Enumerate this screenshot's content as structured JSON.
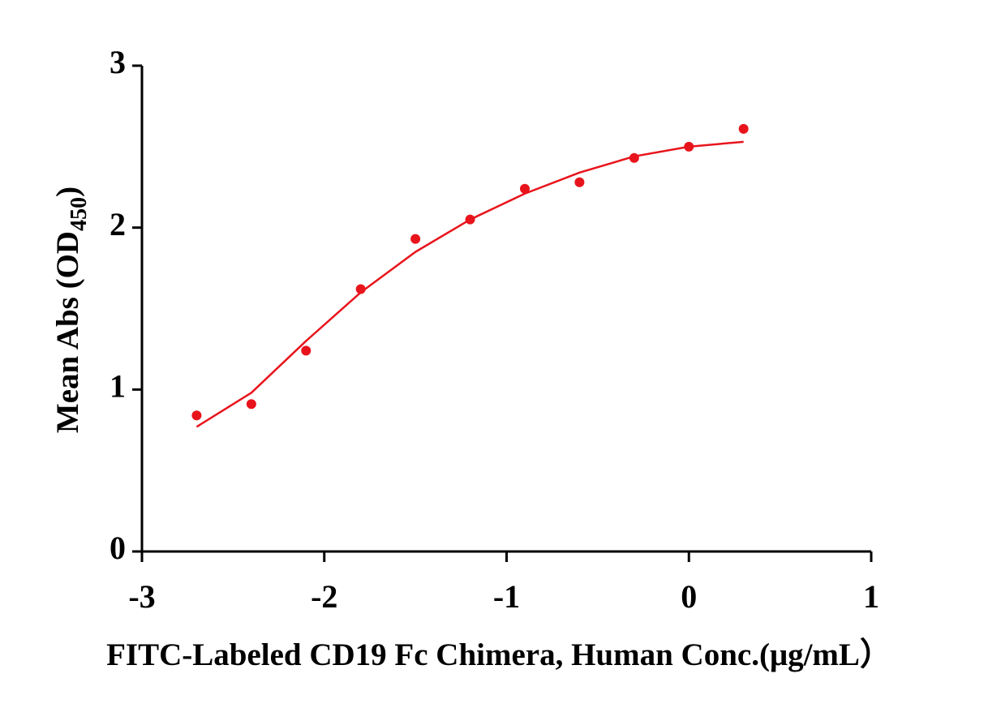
{
  "chart_data": {
    "type": "scatter",
    "x_label": "FITC-Labeled CD19 Fc Chimera, Human Conc.(μg/mL）",
    "y_label": [
      "Mean Abs (OD",
      "450",
      ")"
    ],
    "x": [
      -2.7,
      -2.4,
      -2.1,
      -1.8,
      -1.5,
      -1.2,
      -0.9,
      -0.6,
      -0.3,
      0,
      0.3
    ],
    "series": [
      {
        "type": "scatter",
        "color": "#e8141c",
        "values": [
          0.84,
          0.91,
          1.24,
          1.62,
          1.93,
          2.05,
          2.24,
          2.28,
          2.43,
          2.5,
          2.61
        ]
      },
      {
        "type": "line",
        "color": "#e8141c",
        "values": [
          0.77,
          0.98,
          1.3,
          1.6,
          1.85,
          2.05,
          2.21,
          2.34,
          2.44,
          2.5,
          2.53
        ]
      }
    ],
    "xlim": [
      -3,
      1
    ],
    "xticks": [
      -3,
      -2,
      -1,
      0,
      1
    ],
    "ylim": [
      0,
      3
    ],
    "yticks": [
      0,
      1,
      2,
      3
    ],
    "grid": false
  }
}
